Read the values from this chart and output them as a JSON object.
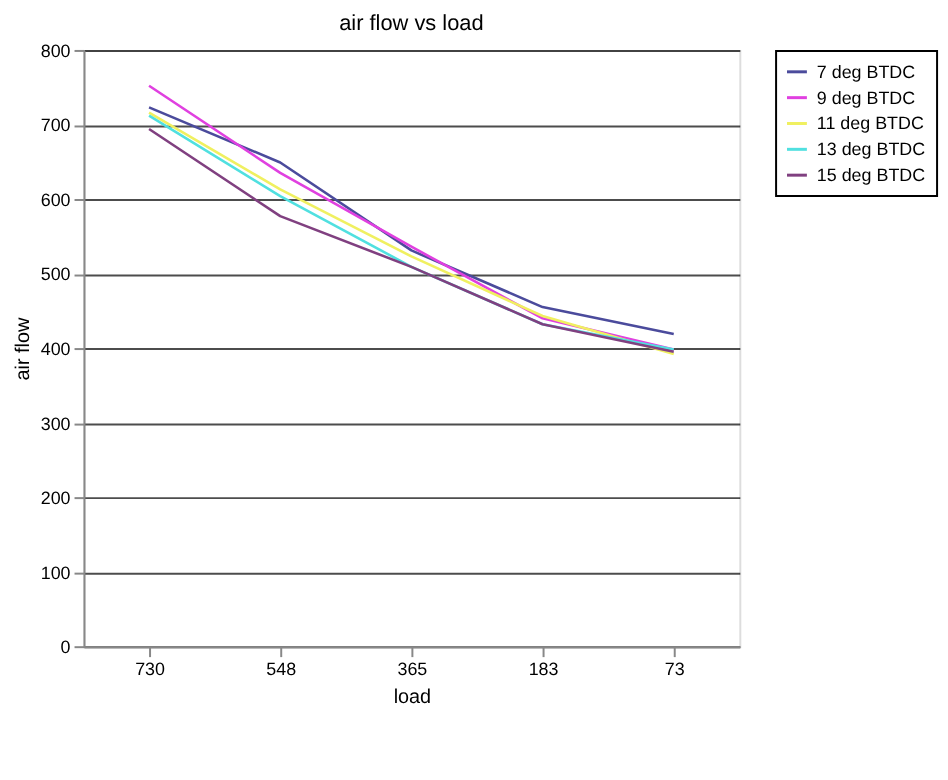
{
  "chart_data": {
    "type": "line",
    "title": "air flow vs load",
    "xlabel": "load",
    "ylabel": "air flow",
    "categories": [
      "730",
      "548",
      "365",
      "183",
      "73"
    ],
    "series": [
      {
        "name": "7 deg BTDC",
        "color": "#4b4b9c",
        "values": [
          723,
          649,
          531,
          455,
          419
        ]
      },
      {
        "name": "9 deg BTDC",
        "color": "#e040e0",
        "values": [
          752,
          635,
          536,
          440,
          398
        ]
      },
      {
        "name": "11 deg BTDC",
        "color": "#f0f060",
        "values": [
          716,
          613,
          523,
          443,
          392
        ]
      },
      {
        "name": "13 deg BTDC",
        "color": "#50e0e0",
        "values": [
          712,
          604,
          509,
          432,
          398
        ]
      },
      {
        "name": "15 deg BTDC",
        "color": "#804080",
        "values": [
          694,
          577,
          509,
          432,
          395
        ]
      }
    ],
    "ylim": [
      0,
      800
    ],
    "yticks": [
      0,
      100,
      200,
      300,
      400,
      500,
      600,
      700,
      800
    ],
    "grid": "y",
    "legend": "right",
    "marker": "none",
    "line_style": "solid"
  }
}
